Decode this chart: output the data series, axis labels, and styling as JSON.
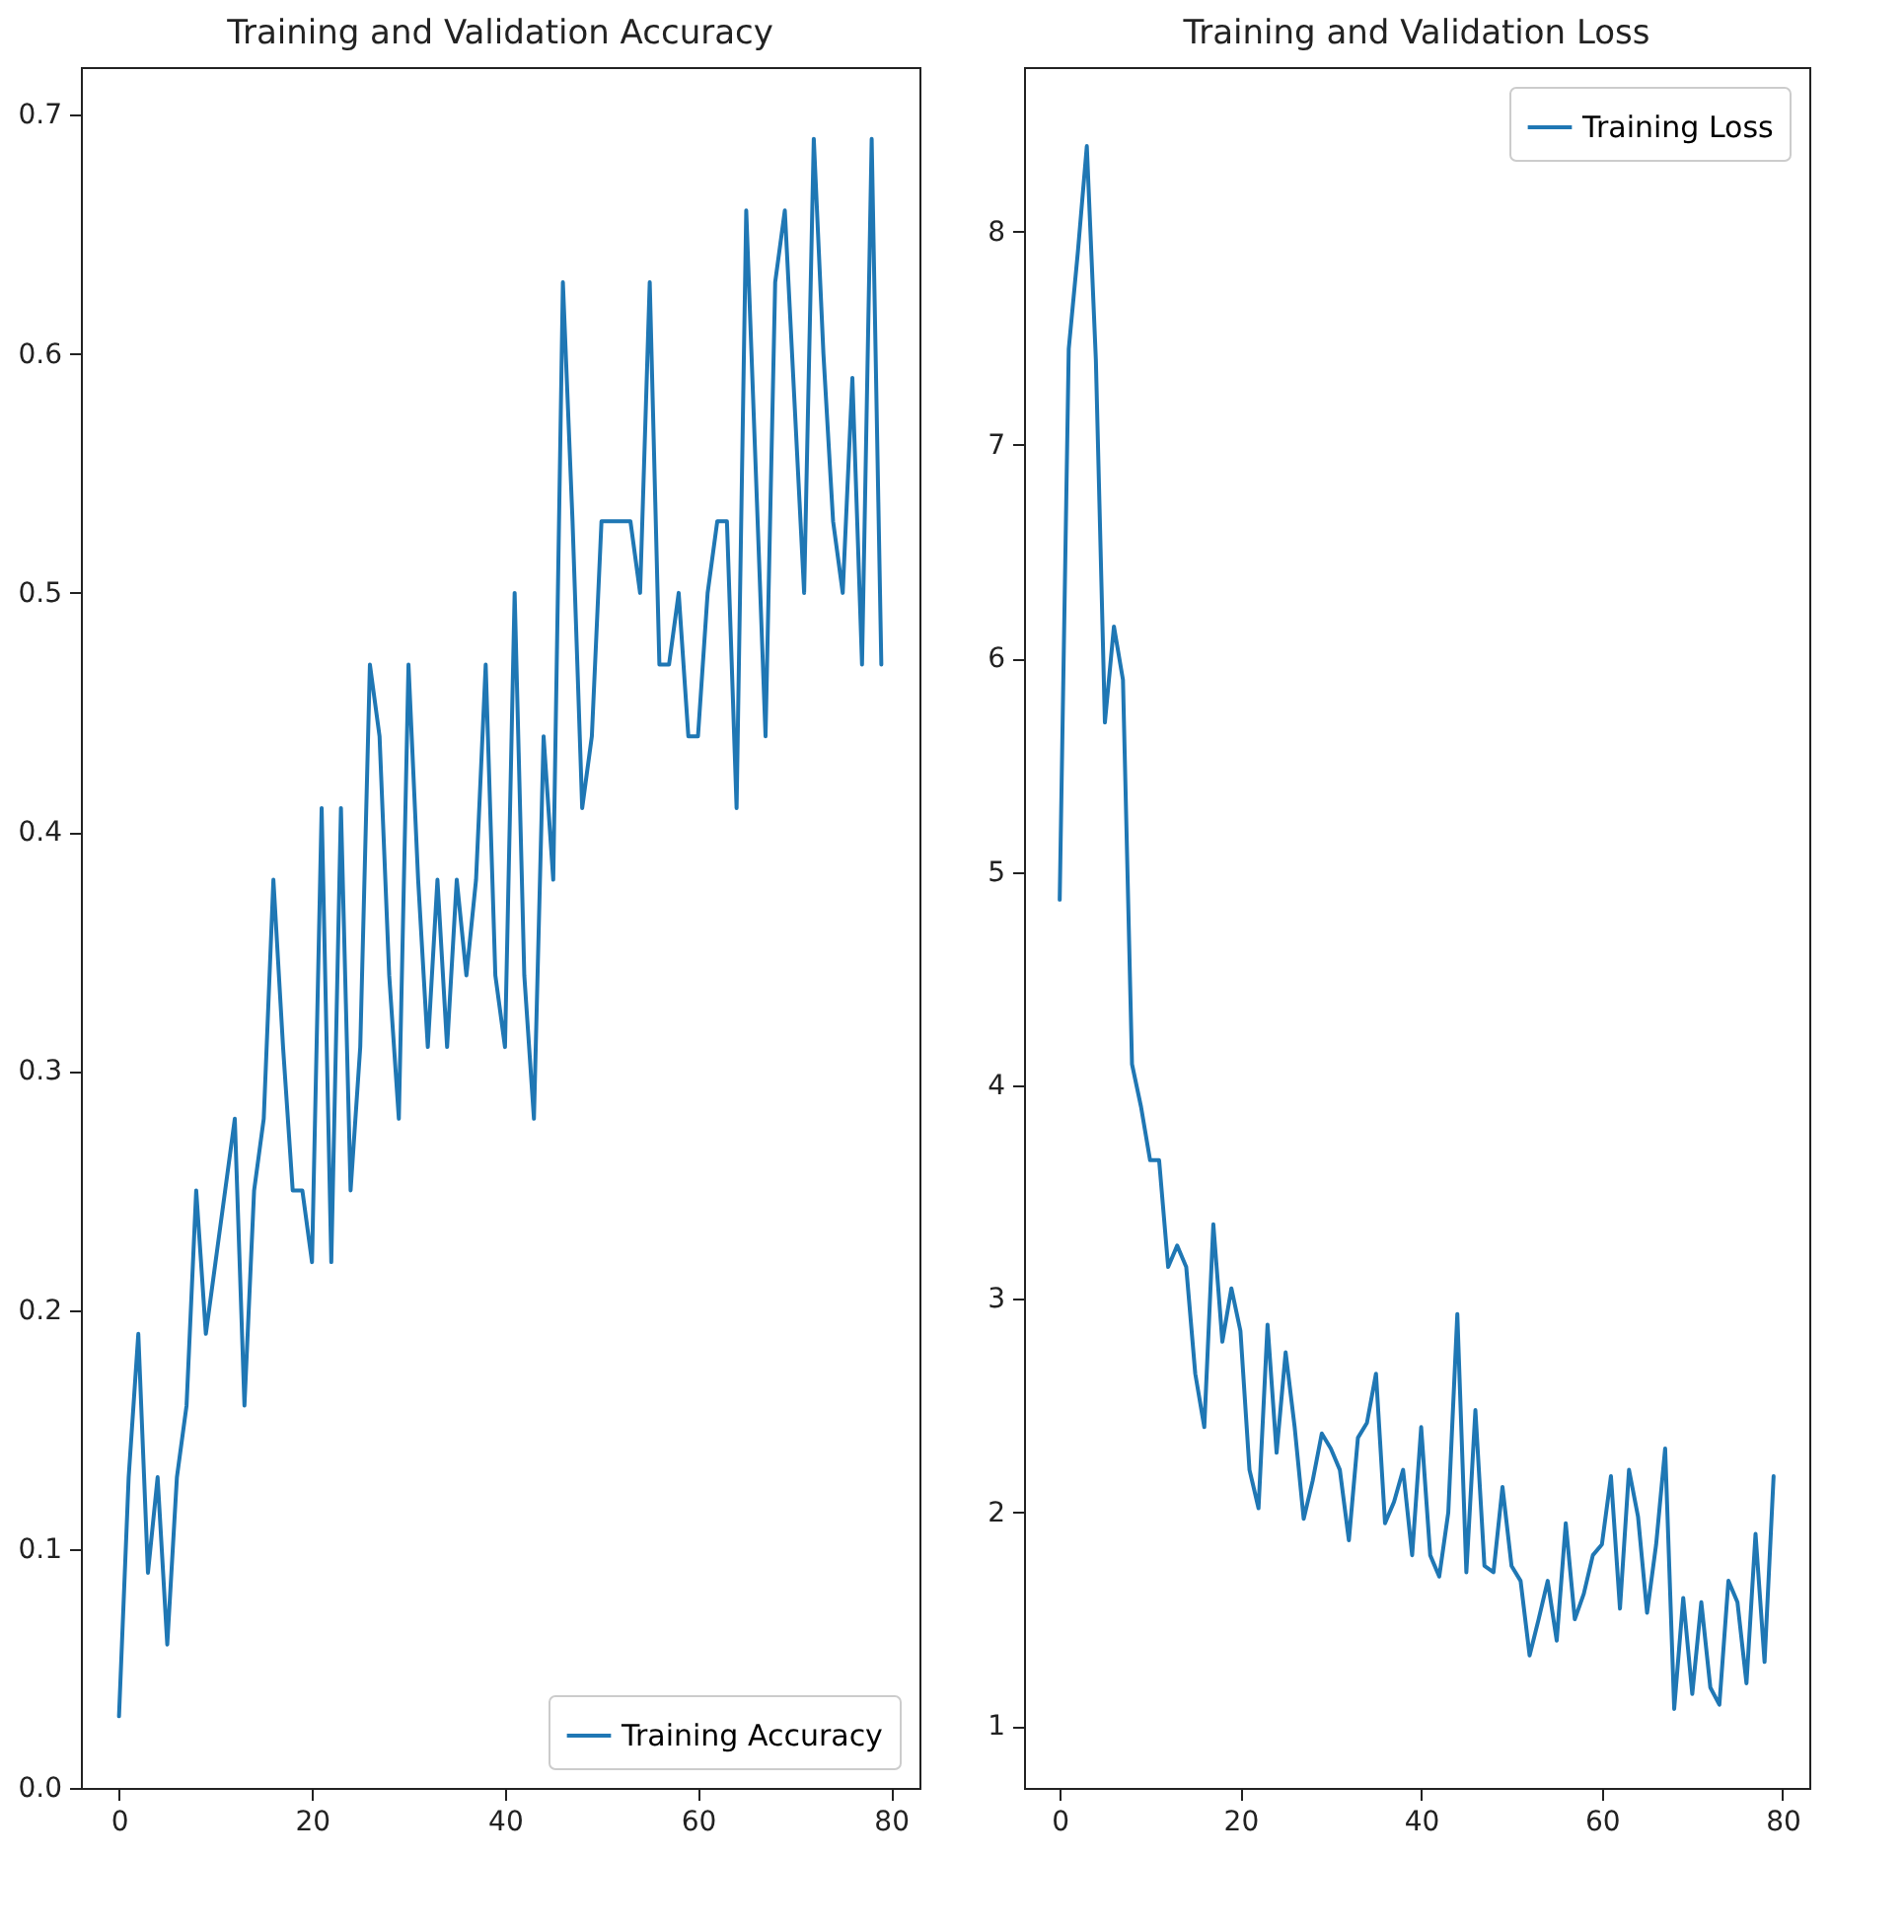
{
  "chart_data": [
    {
      "type": "line",
      "title": "Training and Validation Accuracy",
      "x": [
        0,
        1,
        2,
        3,
        4,
        5,
        6,
        7,
        8,
        9,
        10,
        11,
        12,
        13,
        14,
        15,
        16,
        17,
        18,
        19,
        20,
        21,
        22,
        23,
        24,
        25,
        26,
        27,
        28,
        29,
        30,
        31,
        32,
        33,
        34,
        35,
        36,
        37,
        38,
        39,
        40,
        41,
        42,
        43,
        44,
        45,
        46,
        47,
        48,
        49,
        50,
        51,
        52,
        53,
        54,
        55,
        56,
        57,
        58,
        59,
        60,
        61,
        62,
        63,
        64,
        65,
        66,
        67,
        68,
        69,
        70,
        71,
        72,
        73,
        74,
        75,
        76,
        77,
        78,
        79
      ],
      "series": [
        {
          "name": "Training Accuracy",
          "color": "#1f77b4",
          "values": [
            0.03,
            0.13,
            0.19,
            0.09,
            0.13,
            0.06,
            0.13,
            0.16,
            0.25,
            0.19,
            0.22,
            0.25,
            0.28,
            0.16,
            0.25,
            0.28,
            0.38,
            0.31,
            0.25,
            0.25,
            0.22,
            0.41,
            0.22,
            0.41,
            0.25,
            0.31,
            0.47,
            0.44,
            0.34,
            0.28,
            0.47,
            0.38,
            0.31,
            0.38,
            0.31,
            0.38,
            0.34,
            0.38,
            0.47,
            0.34,
            0.31,
            0.5,
            0.34,
            0.28,
            0.44,
            0.38,
            0.63,
            0.53,
            0.41,
            0.44,
            0.53,
            0.53,
            0.53,
            0.53,
            0.5,
            0.63,
            0.47,
            0.47,
            0.5,
            0.44,
            0.44,
            0.5,
            0.53,
            0.53,
            0.41,
            0.66,
            0.55,
            0.44,
            0.63,
            0.66,
            0.58,
            0.5,
            0.69,
            0.6,
            0.53,
            0.5,
            0.59,
            0.47,
            0.69,
            0.47
          ]
        }
      ],
      "xlim": [
        -3.95,
        82.95
      ],
      "xticks": [
        0,
        20,
        40,
        60,
        80
      ],
      "ylim": [
        0,
        0.72
      ],
      "yticks": [
        {
          "value": 0,
          "label": "0.0"
        },
        0.1,
        0.2,
        0.3,
        0.4,
        0.5,
        0.6,
        0.7
      ],
      "legend": "bottom right"
    },
    {
      "type": "line",
      "title": "Training and Validation Loss",
      "x": [
        0,
        1,
        2,
        3,
        4,
        5,
        6,
        7,
        8,
        9,
        10,
        11,
        12,
        13,
        14,
        15,
        16,
        17,
        18,
        19,
        20,
        21,
        22,
        23,
        24,
        25,
        26,
        27,
        28,
        29,
        30,
        31,
        32,
        33,
        34,
        35,
        36,
        37,
        38,
        39,
        40,
        41,
        42,
        43,
        44,
        45,
        46,
        47,
        48,
        49,
        50,
        51,
        52,
        53,
        54,
        55,
        56,
        57,
        58,
        59,
        60,
        61,
        62,
        63,
        64,
        65,
        66,
        67,
        68,
        69,
        70,
        71,
        72,
        73,
        74,
        75,
        76,
        77,
        78,
        79
      ],
      "series": [
        {
          "name": "Training Loss",
          "color": "#1f77b4",
          "values": [
            4.87,
            7.45,
            7.9,
            8.4,
            7.4,
            5.7,
            6.15,
            5.9,
            4.1,
            3.9,
            3.65,
            3.65,
            3.15,
            3.25,
            3.15,
            2.65,
            2.4,
            3.35,
            2.8,
            3.05,
            2.85,
            2.2,
            2.02,
            2.88,
            2.28,
            2.75,
            2.4,
            1.97,
            2.15,
            2.37,
            2.3,
            2.2,
            1.87,
            2.35,
            2.42,
            2.65,
            1.95,
            2.05,
            2.2,
            1.8,
            2.4,
            1.8,
            1.7,
            2.0,
            2.93,
            1.72,
            2.48,
            1.75,
            1.72,
            2.12,
            1.75,
            1.68,
            1.33,
            1.5,
            1.68,
            1.4,
            1.95,
            1.5,
            1.62,
            1.8,
            1.85,
            2.17,
            1.55,
            2.2,
            1.98,
            1.53,
            1.85,
            2.3,
            1.08,
            1.6,
            1.15,
            1.58,
            1.18,
            1.1,
            1.68,
            1.58,
            1.2,
            1.9,
            1.3,
            2.17
          ]
        }
      ],
      "xlim": [
        -3.95,
        82.95
      ],
      "xticks": [
        0,
        20,
        40,
        60,
        80
      ],
      "ylim": [
        0.71,
        8.77
      ],
      "yticks": [
        1,
        2,
        3,
        4,
        5,
        6,
        7,
        8
      ],
      "legend": "top right"
    }
  ]
}
